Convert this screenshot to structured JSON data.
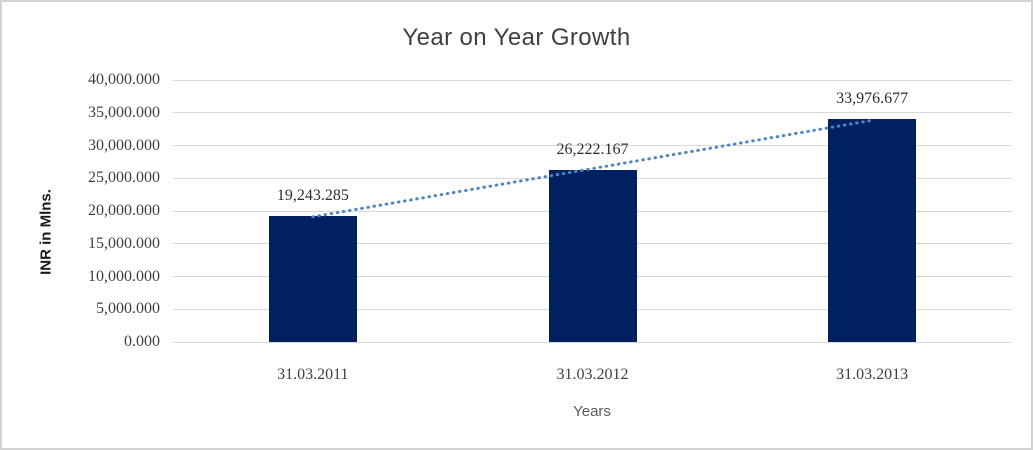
{
  "chart_data": {
    "type": "bar",
    "title": "Year on Year Growth",
    "xlabel": "Years",
    "ylabel": "INR in Mlns.",
    "categories": [
      "31.03.2011",
      "31.03.2012",
      "31.03.2013"
    ],
    "values": [
      19243.285,
      26222.167,
      33976.677
    ],
    "data_labels": [
      "19,243.285",
      "26,222.167",
      "33,976.677"
    ],
    "y_tick_labels": [
      "0.000",
      "5,000.000",
      "10,000.000",
      "15,000.000",
      "20,000.000",
      "25,000.000",
      "30,000.000",
      "35,000.000",
      "40,000.000"
    ],
    "ylim": [
      0,
      40000
    ],
    "grid": true,
    "legend": "none",
    "trendline": {
      "type": "linear",
      "style": "dotted"
    },
    "colors": {
      "bar": "#002060",
      "trendline": "#4a86c8",
      "gridline": "#d9d9d9",
      "title_text": "#404040",
      "tick_text": "#3f3f3f",
      "data_label_text": "#2e2e2e",
      "x_axis_title_text": "#595959",
      "y_axis_title_text": "#1a1a1a",
      "frame_border": "#d2d2d2",
      "background": "#ffffff"
    }
  }
}
